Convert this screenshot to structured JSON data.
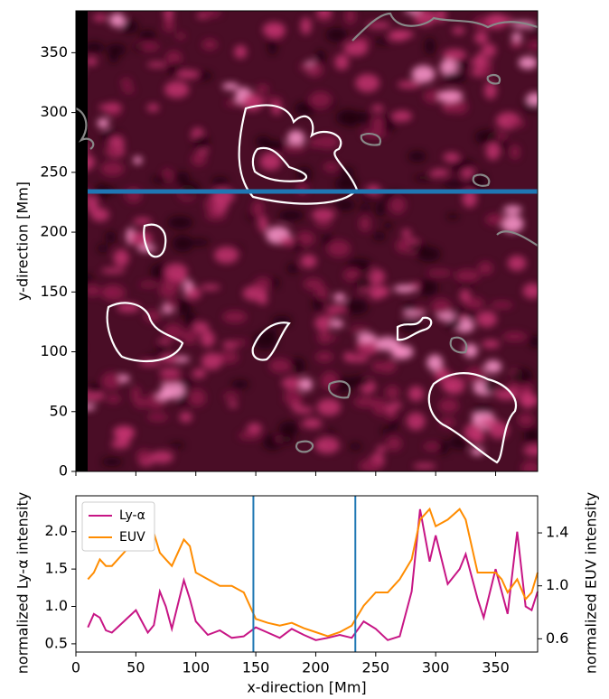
{
  "chart_data": [
    {
      "type": "image",
      "ylabel": "y-direction [Mm]",
      "xlim": [
        0,
        385
      ],
      "ylim": [
        0,
        385
      ],
      "xticks": [
        0,
        50,
        100,
        150,
        200,
        250,
        300,
        350
      ],
      "yticks": [
        0,
        50,
        100,
        150,
        200,
        250,
        300,
        350
      ],
      "slice_y": 234,
      "slice_color": "#1f77b4"
    },
    {
      "type": "line",
      "xlabel": "x-direction [Mm]",
      "ylabel": "normalized Ly-α intensity",
      "y2label": "normalized EUV intensity",
      "xlim": [
        0,
        385
      ],
      "ylim": [
        0.39,
        2.48
      ],
      "y2lim": [
        0.5,
        1.68
      ],
      "xticks": [
        0,
        50,
        100,
        150,
        200,
        250,
        300,
        350
      ],
      "yticks": [
        0.5,
        {
          "value": 1,
          "label": "1.0"
        },
        1.5,
        {
          "value": 2,
          "label": "2.0"
        }
      ],
      "y2ticks": [
        0.6,
        {
          "value": 1,
          "label": "1.0"
        },
        1.4
      ],
      "markers_x": [
        148,
        233
      ],
      "marker_color": "#1f77b4",
      "legend": "upper left",
      "x": [
        10,
        15,
        20,
        25,
        30,
        40,
        50,
        55,
        60,
        65,
        70,
        75,
        80,
        90,
        95,
        100,
        110,
        120,
        130,
        140,
        150,
        160,
        170,
        180,
        190,
        200,
        210,
        220,
        230,
        240,
        250,
        260,
        270,
        280,
        287,
        295,
        300,
        310,
        320,
        325,
        335,
        340,
        350,
        355,
        360,
        368,
        375,
        380,
        385
      ],
      "series": [
        {
          "name": "Ly-α",
          "color": "#c71585",
          "values": [
            0.72,
            0.9,
            0.85,
            0.68,
            0.65,
            0.8,
            0.95,
            0.8,
            0.65,
            0.75,
            1.2,
            1.0,
            0.7,
            1.35,
            1.1,
            0.8,
            0.62,
            0.68,
            0.58,
            0.6,
            0.72,
            0.65,
            0.58,
            0.7,
            0.62,
            0.55,
            0.58,
            0.62,
            0.58,
            0.8,
            0.7,
            0.55,
            0.6,
            1.2,
            2.3,
            1.6,
            1.95,
            1.3,
            1.5,
            1.7,
            1.1,
            0.85,
            1.5,
            1.2,
            0.9,
            2.0,
            1.0,
            0.95,
            1.2
          ]
        },
        {
          "name": "EUV",
          "color": "#ff8c00",
          "axis": "y2",
          "values": [
            1.05,
            1.1,
            1.2,
            1.15,
            1.15,
            1.25,
            1.35,
            1.3,
            1.35,
            1.4,
            1.25,
            1.2,
            1.15,
            1.35,
            1.3,
            1.1,
            1.05,
            1.0,
            1.0,
            0.95,
            0.75,
            0.72,
            0.7,
            0.72,
            0.68,
            0.65,
            0.62,
            0.65,
            0.7,
            0.85,
            0.95,
            0.95,
            1.05,
            1.2,
            1.5,
            1.58,
            1.45,
            1.5,
            1.58,
            1.5,
            1.1,
            1.1,
            1.1,
            1.05,
            0.95,
            1.05,
            0.9,
            0.95,
            1.1
          ]
        }
      ]
    }
  ]
}
